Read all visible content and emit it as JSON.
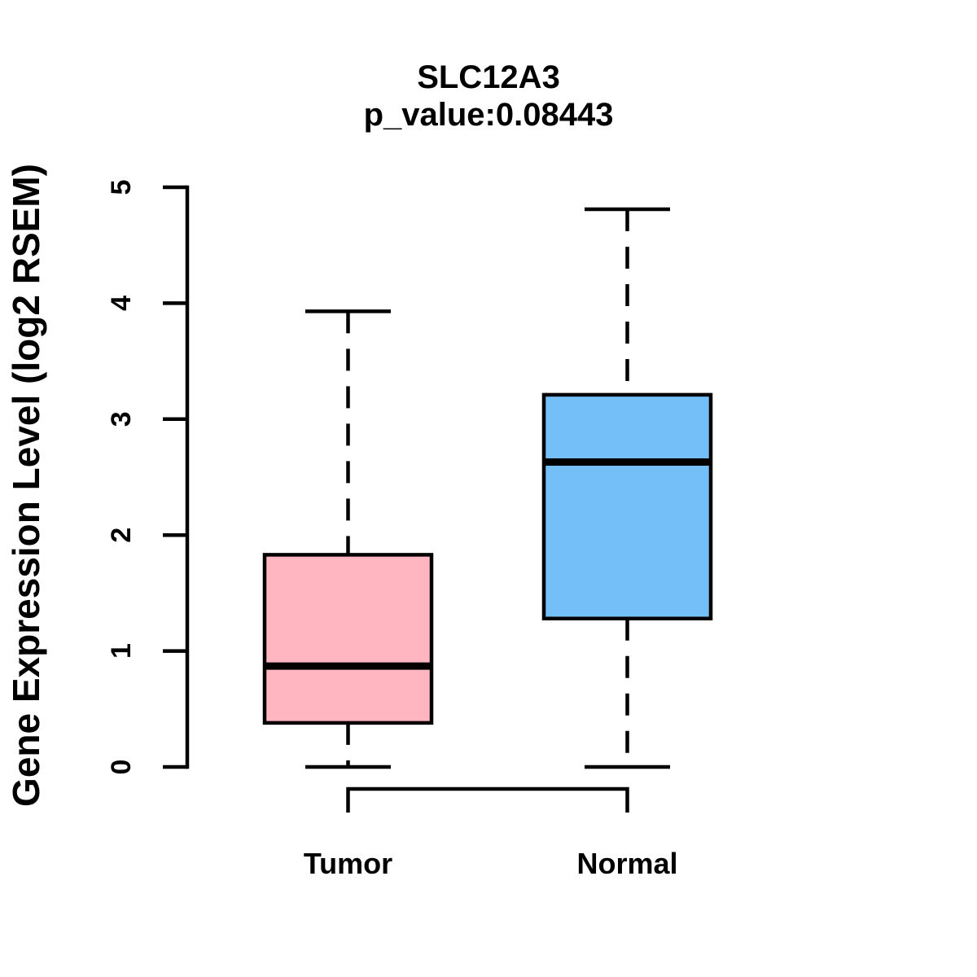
{
  "title": {
    "line1": "SLC12A3",
    "line2": "p_value:0.08443"
  },
  "y_axis": {
    "label": "Gene Expression Level (log2 RSEM)",
    "ticks": [
      "0",
      "1",
      "2",
      "3",
      "4",
      "5"
    ]
  },
  "x_axis": {
    "categories": [
      "Tumor",
      "Normal"
    ]
  },
  "chart_data": {
    "type": "boxplot",
    "title": "SLC12A3",
    "subtitle": "p_value:0.08443",
    "gene": "SLC12A3",
    "p_value": 0.08443,
    "ylabel": "Gene Expression Level (log2 RSEM)",
    "xlabel": "",
    "ylim": [
      0,
      5
    ],
    "yticks": [
      0,
      1,
      2,
      3,
      4,
      5
    ],
    "grid": false,
    "legend": "none",
    "categories": [
      "Tumor",
      "Normal"
    ],
    "series": [
      {
        "name": "Tumor",
        "min": 0,
        "q1": 0.38,
        "median": 0.87,
        "q3": 1.83,
        "max": 3.93,
        "fill": "#FFB6C1"
      },
      {
        "name": "Normal",
        "min": 0,
        "q1": 1.28,
        "median": 2.63,
        "q3": 3.21,
        "max": 4.81,
        "fill": "#74BFF7"
      }
    ],
    "whisker_style": "dashed",
    "box_border_color": "#000000",
    "median_color": "#000000",
    "axis_color": "#000000",
    "background_color": "#FFFFFF"
  }
}
